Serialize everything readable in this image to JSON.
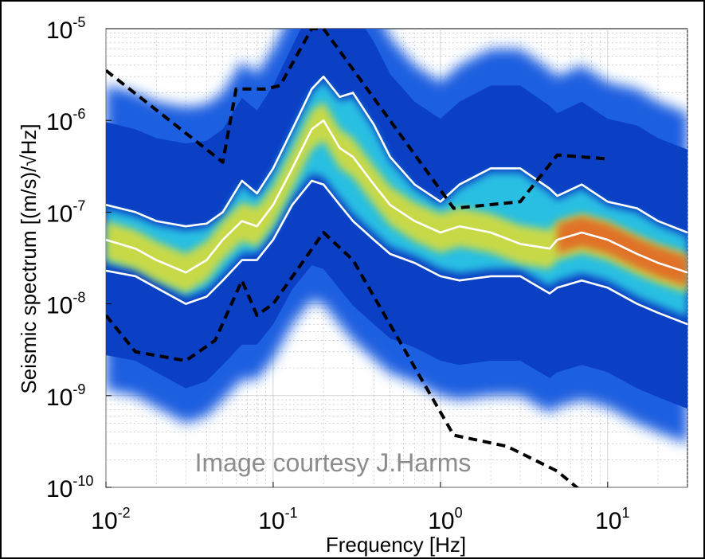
{
  "chart_data": {
    "type": "heatmap",
    "title": "",
    "xlabel": "Frequency [Hz]",
    "ylabel": "Seismic spectrum [(m/s)/√Hz]",
    "x_scale": "log",
    "y_scale": "log",
    "xlim": [
      0.01,
      30
    ],
    "ylim": [
      1e-10,
      1e-05
    ],
    "grid": true,
    "x_ticks": [
      {
        "value": 0.01,
        "base": "10",
        "exp": "-2"
      },
      {
        "value": 0.1,
        "base": "10",
        "exp": "-1"
      },
      {
        "value": 1,
        "base": "10",
        "exp": "0"
      },
      {
        "value": 10,
        "base": "10",
        "exp": "1"
      }
    ],
    "y_ticks": [
      {
        "value": 1e-10,
        "base": "10",
        "exp": "-10"
      },
      {
        "value": 1e-09,
        "base": "10",
        "exp": "-9"
      },
      {
        "value": 1e-08,
        "base": "10",
        "exp": "-8"
      },
      {
        "value": 1e-07,
        "base": "10",
        "exp": "-7"
      },
      {
        "value": 1e-06,
        "base": "10",
        "exp": "-6"
      },
      {
        "value": 1e-05,
        "base": "10",
        "exp": "-5"
      }
    ],
    "colors": {
      "background_density": "#0b3fc4",
      "density_edge": "#1e5fe0",
      "high_density_mid": "#2fd6e8",
      "high_density_peak": "#f0e020",
      "hot": "#e8501a",
      "percentile_line": "#ffffff",
      "model_line": "#000000"
    },
    "series": [
      {
        "style": "white-solid",
        "x": [
          0.01,
          0.015,
          0.02,
          0.03,
          0.04,
          0.05,
          0.065,
          0.08,
          0.1,
          0.13,
          0.17,
          0.2,
          0.25,
          0.3,
          0.4,
          0.5,
          0.7,
          1,
          1.3,
          2,
          3,
          4.5,
          5,
          7,
          10,
          15,
          20,
          30
        ],
        "y": [
          1.2e-07,
          1e-07,
          8e-08,
          7e-08,
          7.5e-08,
          1e-07,
          2.2e-07,
          1.6e-07,
          3e-07,
          8e-07,
          2.2e-06,
          3e-06,
          1.8e-06,
          2e-06,
          9e-07,
          4e-07,
          2e-07,
          1.3e-07,
          2e-07,
          3e-07,
          3e-07,
          1.8e-07,
          1.5e-07,
          2e-07,
          1.3e-07,
          1.1e-07,
          8e-08,
          6e-08
        ]
      },
      {
        "style": "white-solid",
        "x": [
          0.01,
          0.015,
          0.02,
          0.03,
          0.04,
          0.05,
          0.065,
          0.08,
          0.1,
          0.13,
          0.17,
          0.2,
          0.25,
          0.3,
          0.4,
          0.5,
          0.7,
          1,
          1.3,
          2,
          3,
          4.5,
          5,
          7,
          10,
          15,
          20,
          30
        ],
        "y": [
          5e-08,
          4e-08,
          3e-08,
          2.2e-08,
          3e-08,
          5e-08,
          8e-08,
          7e-08,
          1.2e-07,
          3e-07,
          8e-07,
          1e-06,
          5e-07,
          4e-07,
          2e-07,
          1.2e-07,
          8e-08,
          6e-08,
          7e-08,
          6e-08,
          4.5e-08,
          4e-08,
          5e-08,
          6e-08,
          5e-08,
          3.5e-08,
          2.8e-08,
          2.2e-08
        ]
      },
      {
        "style": "white-solid",
        "x": [
          0.01,
          0.015,
          0.02,
          0.03,
          0.04,
          0.05,
          0.065,
          0.08,
          0.1,
          0.13,
          0.17,
          0.2,
          0.25,
          0.3,
          0.4,
          0.5,
          0.7,
          1,
          1.3,
          2,
          3,
          4.5,
          5,
          7,
          10,
          15,
          20,
          30
        ],
        "y": [
          2.3e-08,
          2e-08,
          1.5e-08,
          1e-08,
          1.2e-08,
          1.8e-08,
          3e-08,
          3e-08,
          5e-08,
          1.2e-07,
          2.2e-07,
          2e-07,
          1.2e-07,
          8e-08,
          5e-08,
          3.5e-08,
          2.8e-08,
          2e-08,
          1.8e-08,
          2e-08,
          2e-08,
          1.3e-08,
          1.5e-08,
          1.8e-08,
          1.5e-08,
          1e-08,
          8e-09,
          6e-09
        ]
      },
      {
        "style": "black-dashed",
        "x": [
          0.01,
          0.05,
          0.06,
          0.09,
          0.11,
          0.17,
          0.2,
          1.2,
          3,
          5,
          10
        ],
        "y": [
          3.5e-06,
          3.5e-07,
          2.2e-06,
          2.2e-06,
          2.4e-06,
          1e-05,
          1e-05,
          1.1e-07,
          1.3e-07,
          4.2e-07,
          3.8e-07
        ]
      },
      {
        "style": "black-dashed",
        "x": [
          0.01,
          0.015,
          0.03,
          0.045,
          0.065,
          0.08,
          0.1,
          0.2,
          0.3,
          1.2,
          2.5,
          5,
          7
        ],
        "y": [
          7.5e-09,
          3e-09,
          2.4e-09,
          4e-09,
          1.8e-08,
          7.5e-09,
          1e-08,
          6e-08,
          3e-08,
          3.7e-10,
          2.8e-10,
          1.5e-10,
          9e-11
        ]
      }
    ],
    "annotations": [
      "Image courtesy J.Harms"
    ]
  }
}
